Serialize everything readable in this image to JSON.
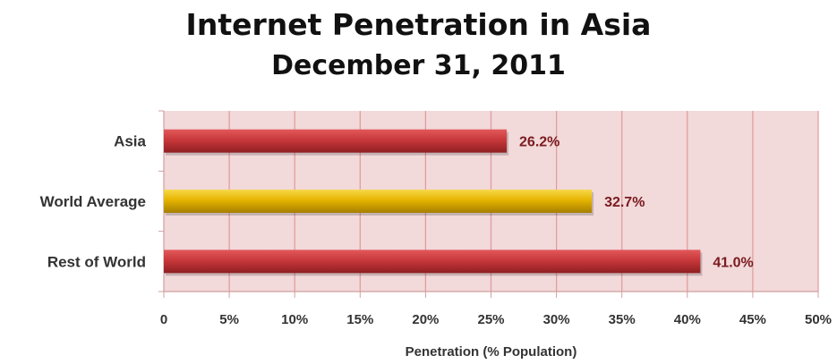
{
  "chart_data": {
    "type": "bar",
    "orientation": "horizontal",
    "title": "Internet Penetration in Asia",
    "subtitle": "December 31, 2011",
    "xlabel": "Penetration (% Population)",
    "ylabel": "",
    "xlim": [
      0,
      50
    ],
    "x_ticks": [
      "0",
      "5%",
      "10%",
      "15%",
      "20%",
      "25%",
      "30%",
      "35%",
      "40%",
      "45%",
      "50%"
    ],
    "grid": true,
    "categories": [
      "Asia",
      "World Average",
      "Rest of World"
    ],
    "values": [
      26.2,
      32.7,
      41.0
    ],
    "data_labels": [
      "26.2%",
      "32.7%",
      "41.0%"
    ],
    "bar_colors": [
      "#c8383a",
      "#e6b400",
      "#c8383a"
    ],
    "plot_background": "#f2d9da",
    "grid_color": "#e09a9c"
  }
}
